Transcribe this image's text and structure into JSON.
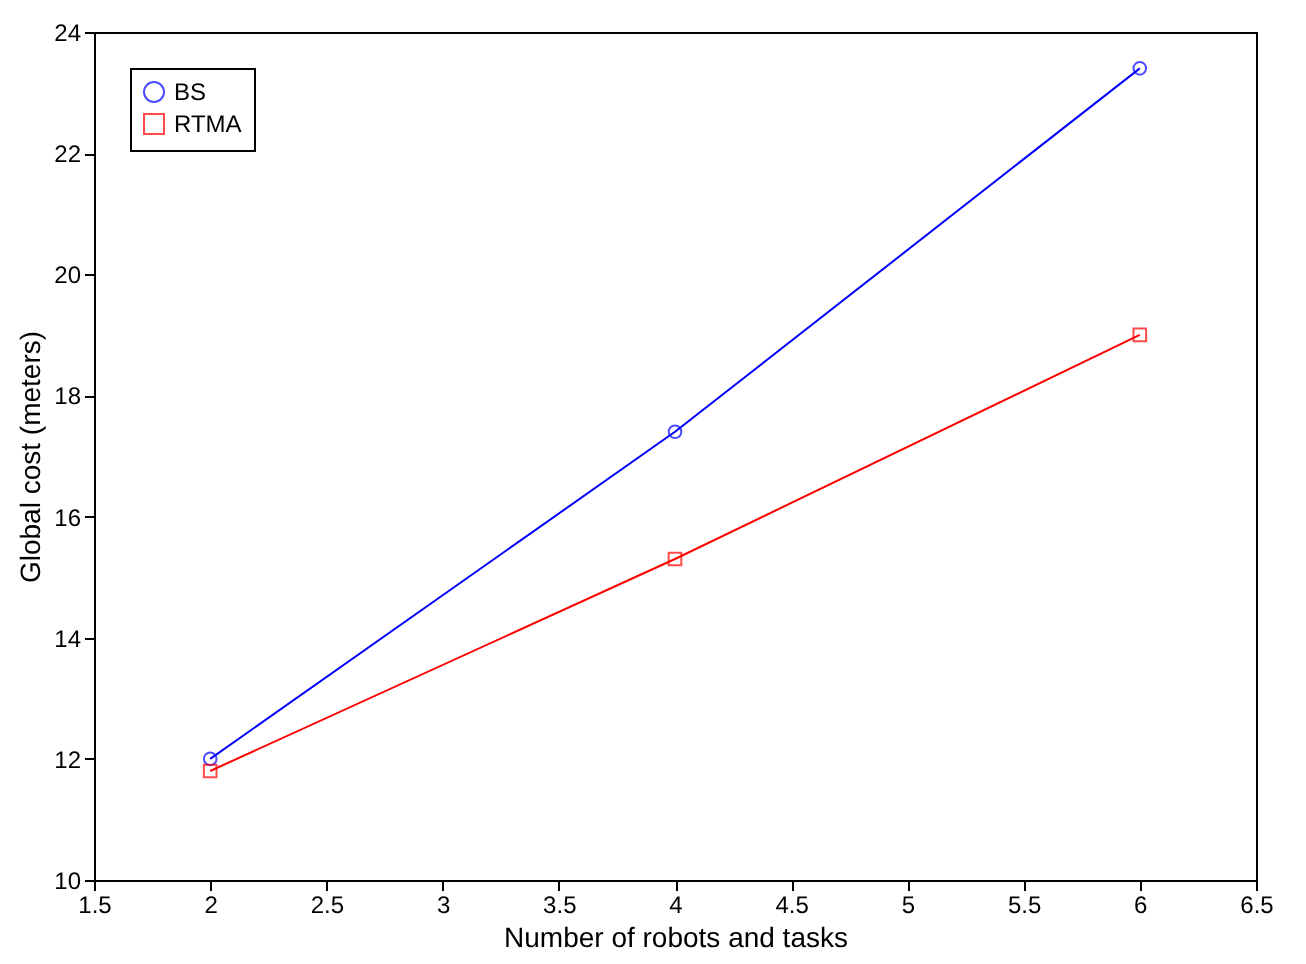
{
  "chart_data": {
    "type": "line",
    "xlabel": "Number of robots and tasks",
    "ylabel": "Global cost (meters)",
    "x": [
      2,
      4,
      6
    ],
    "series": [
      {
        "name": "BS",
        "color": "#0000ff",
        "values": [
          12.0,
          17.4,
          23.4
        ],
        "marker": "circle"
      },
      {
        "name": "RTMA",
        "color": "#ff0000",
        "values": [
          11.8,
          15.3,
          19.0
        ],
        "marker": "square"
      }
    ],
    "xlim": [
      1.5,
      6.5
    ],
    "xticks": [
      1.5,
      2,
      2.5,
      3,
      3.5,
      4,
      4.5,
      5,
      5.5,
      6,
      6.5
    ],
    "ylim": [
      10,
      24
    ],
    "yticks": [
      10,
      12,
      14,
      16,
      18,
      20,
      22,
      24
    ],
    "grid": false,
    "legend": "top left",
    "line_style": "solid"
  }
}
